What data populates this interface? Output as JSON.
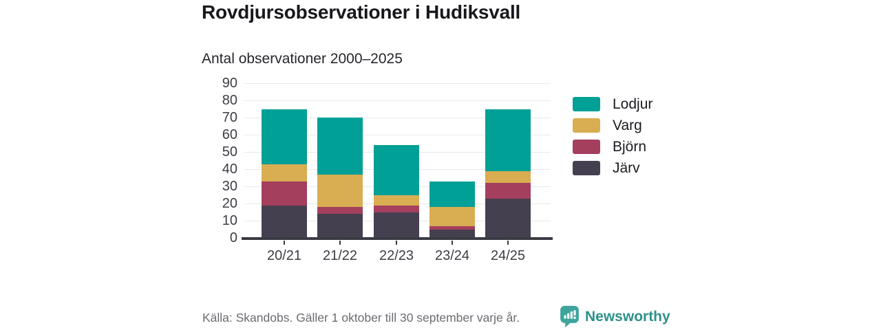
{
  "chart_data": {
    "type": "bar",
    "stacked": true,
    "title": "Rovdjursobservationer i Hudiksvall",
    "subtitle": "Antal observationer 2000–2025",
    "categories": [
      "20/21",
      "21/22",
      "22/23",
      "23/24",
      "24/25"
    ],
    "series": [
      {
        "name": "Järv",
        "color": "#45404f",
        "values": [
          19,
          14,
          15,
          5,
          23
        ]
      },
      {
        "name": "Björn",
        "color": "#a43f5e",
        "values": [
          14,
          4,
          4,
          2,
          9
        ]
      },
      {
        "name": "Varg",
        "color": "#d9ad52",
        "values": [
          10,
          19,
          6,
          11,
          7
        ]
      },
      {
        "name": "Lodjur",
        "color": "#00a096",
        "values": [
          32,
          33,
          29,
          15,
          36
        ]
      }
    ],
    "totals": [
      75,
      70,
      54,
      33,
      75
    ],
    "xlabel": "",
    "ylabel": "",
    "ylim": [
      0,
      90
    ],
    "ytick_step": 10,
    "grid": true,
    "legend_position": "right"
  },
  "legend": {
    "items": [
      {
        "label": "Lodjur",
        "color": "#00a096"
      },
      {
        "label": "Varg",
        "color": "#d9ad52"
      },
      {
        "label": "Björn",
        "color": "#a43f5e"
      },
      {
        "label": "Järv",
        "color": "#45404f"
      }
    ]
  },
  "footer": {
    "source_text": "Källa: Skandobs. Gäller 1 oktober till 30 september varje år.",
    "brand": "Newsworthy"
  },
  "colors": {
    "accent_teal": "#00a096",
    "gold": "#d9ad52",
    "maroon": "#a43f5e",
    "dark": "#45404f",
    "axis": "#3a3a44",
    "gridline": "#e9e9e9",
    "brand_teal": "#3da59d"
  }
}
